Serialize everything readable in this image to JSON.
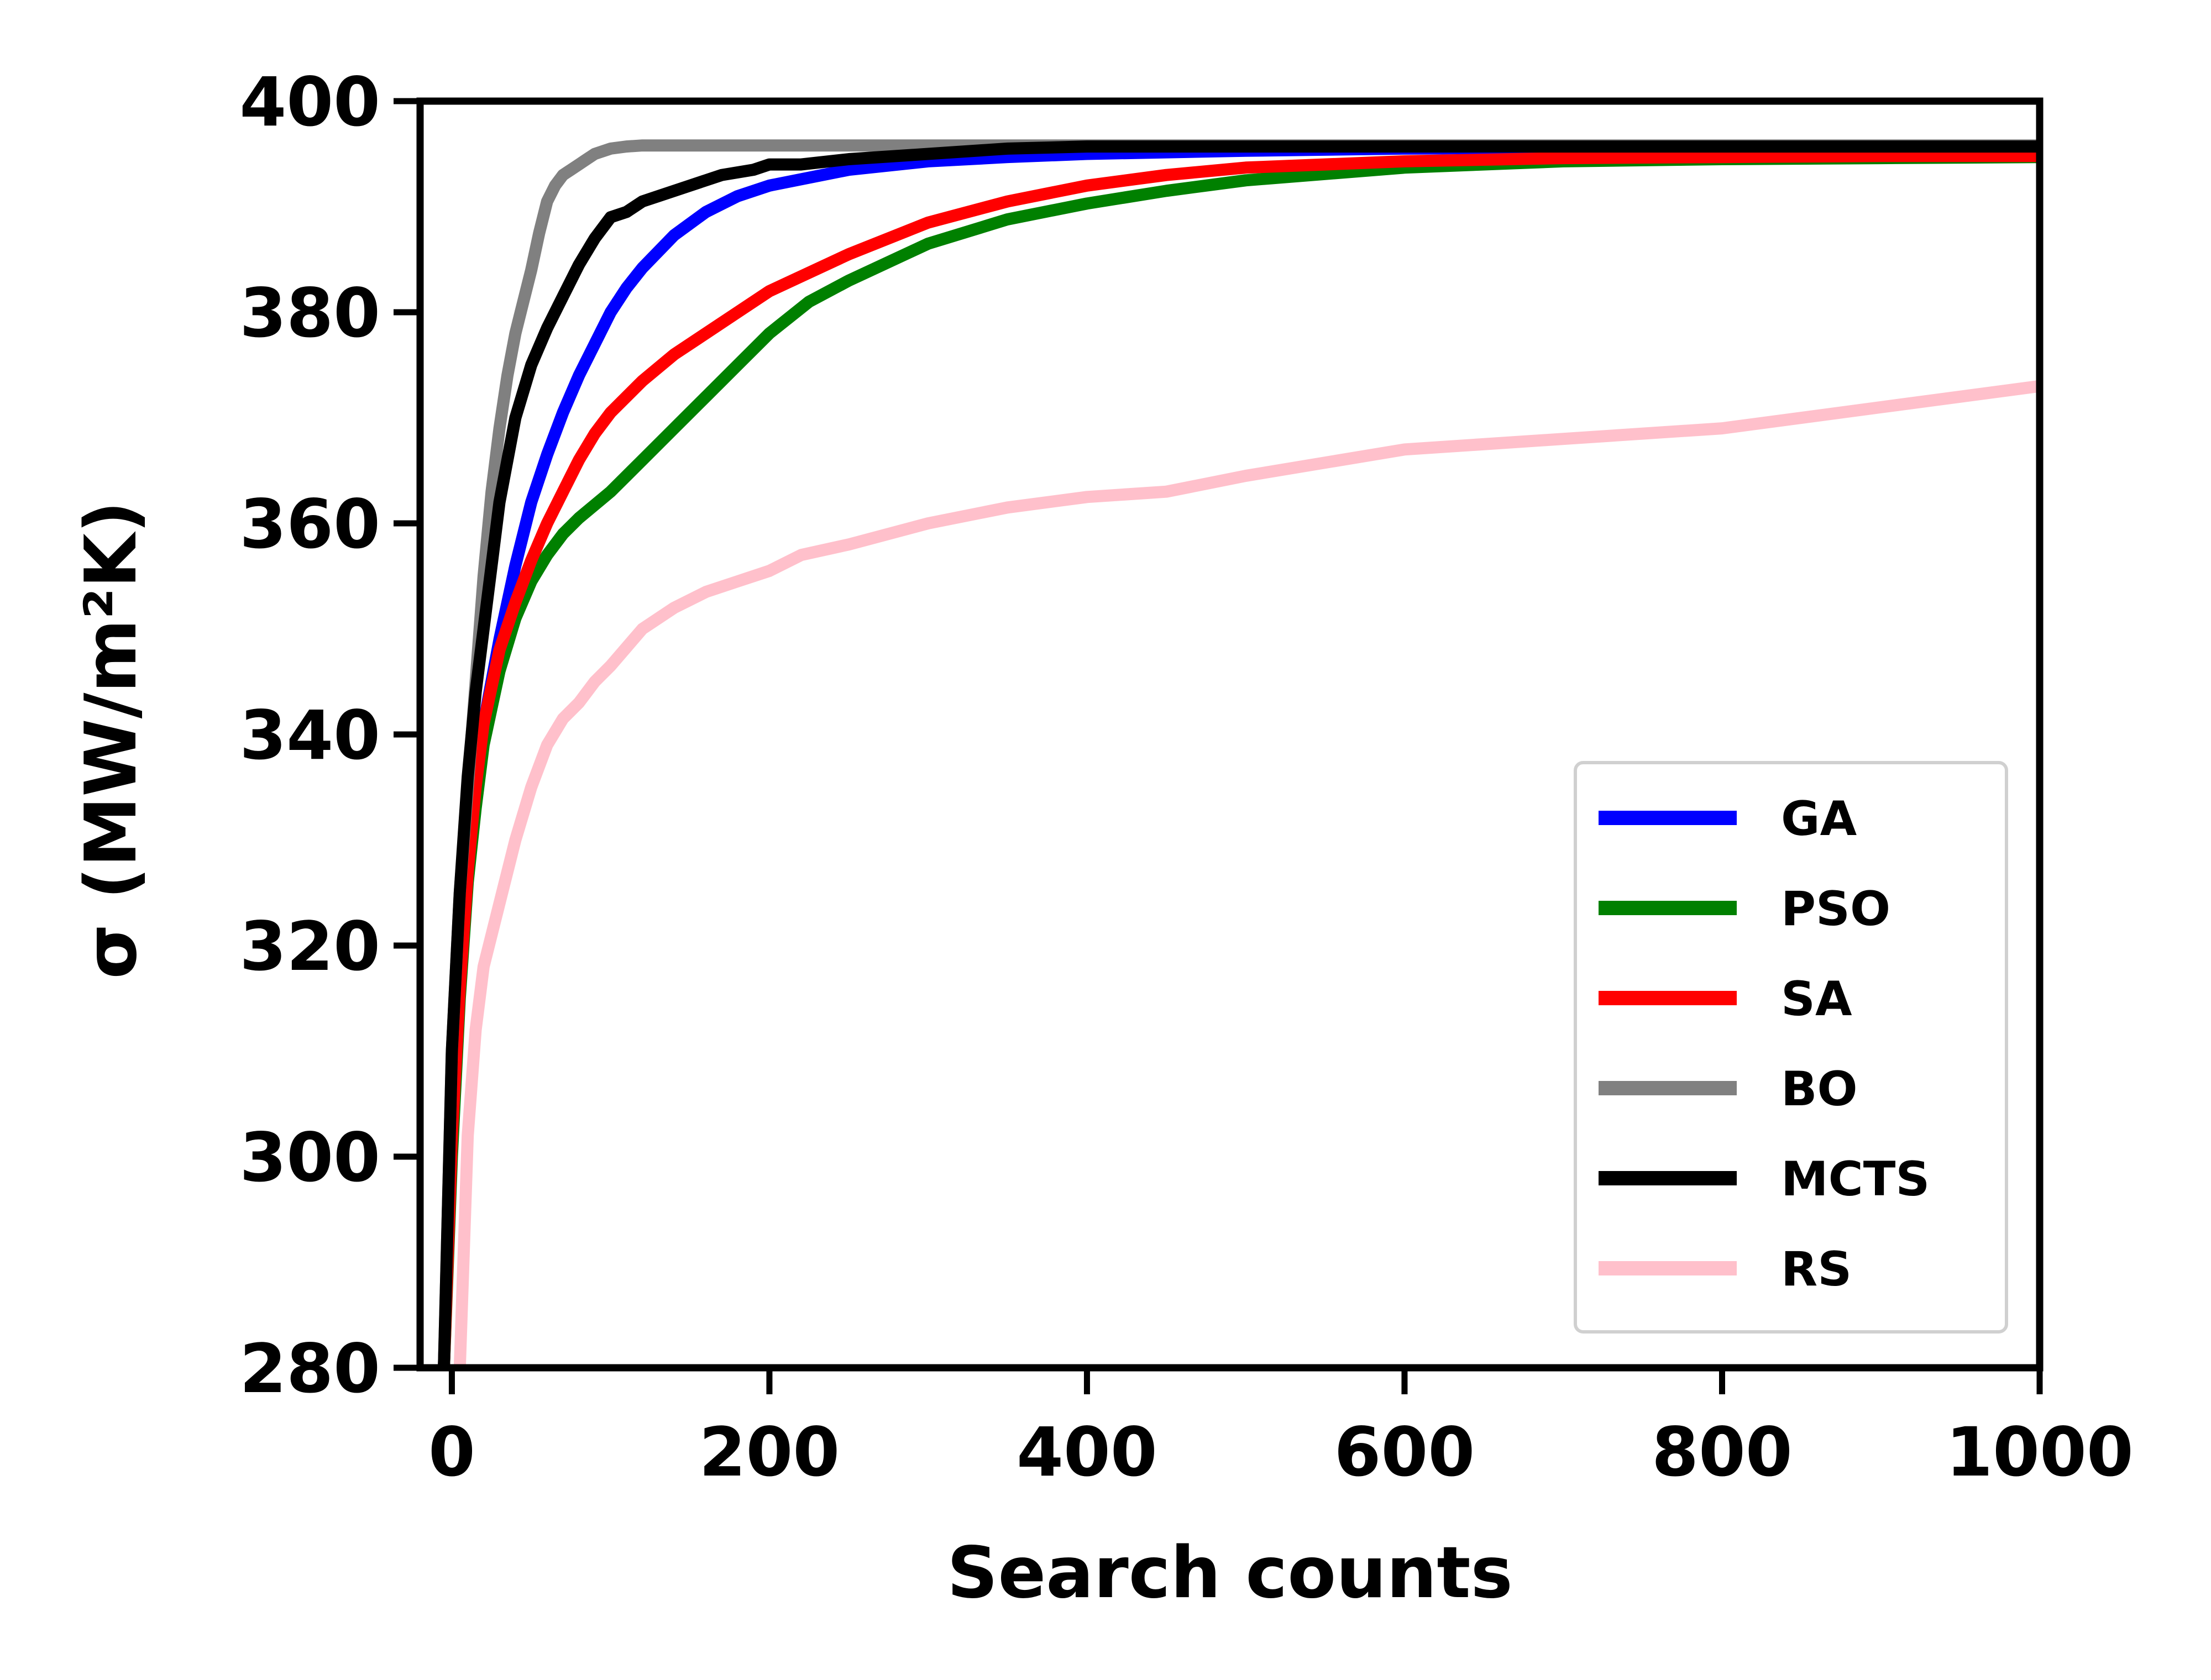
{
  "chart_data": {
    "type": "line",
    "title": "",
    "xlabel": "Search counts",
    "ylabel": "σ (MW/m²K)",
    "xlim": [
      -20,
      1000
    ],
    "ylim": [
      280,
      400
    ],
    "xticks": [
      0,
      200,
      400,
      600,
      800,
      1000
    ],
    "yticks": [
      280,
      300,
      320,
      340,
      360,
      380,
      400
    ],
    "grid": false,
    "legend_position": "lower-right",
    "series": [
      {
        "name": "GA",
        "color": "#0000ff",
        "x": [
          -5,
          0,
          5,
          10,
          15,
          20,
          30,
          40,
          50,
          60,
          70,
          80,
          90,
          100,
          110,
          120,
          140,
          160,
          180,
          200,
          250,
          300,
          350,
          400,
          500,
          600,
          700,
          800,
          900,
          1000
        ],
        "y": [
          280,
          305,
          318,
          328,
          335,
          341,
          349,
          356,
          362,
          366.5,
          370.5,
          374,
          377,
          380,
          382.3,
          384.2,
          387.3,
          389.5,
          391,
          392,
          393.5,
          394.3,
          394.7,
          395,
          395.3,
          395.5,
          395.6,
          395.7,
          395.7,
          395.7
        ]
      },
      {
        "name": "PSO",
        "color": "#008000",
        "x": [
          -5,
          0,
          5,
          10,
          15,
          20,
          30,
          40,
          50,
          60,
          70,
          80,
          100,
          120,
          140,
          160,
          180,
          200,
          225,
          250,
          300,
          350,
          400,
          450,
          500,
          600,
          700,
          800,
          900,
          1000
        ],
        "y": [
          280,
          300,
          315,
          326,
          333,
          339,
          346,
          351,
          354.5,
          357,
          359,
          360.5,
          363,
          366,
          369,
          372,
          375,
          378,
          381,
          383,
          386.5,
          388.8,
          390.3,
          391.5,
          392.5,
          393.7,
          394.3,
          394.5,
          394.6,
          394.7
        ]
      },
      {
        "name": "SA",
        "color": "#ff0000",
        "x": [
          -5,
          0,
          5,
          10,
          15,
          20,
          30,
          40,
          50,
          60,
          70,
          80,
          90,
          100,
          120,
          140,
          160,
          180,
          200,
          250,
          300,
          350,
          400,
          450,
          500,
          600,
          700,
          800,
          900,
          1000
        ],
        "y": [
          280,
          302,
          316,
          327,
          335,
          341,
          348,
          352.5,
          356.5,
          360,
          363,
          366,
          368.5,
          370.5,
          373.5,
          376,
          378,
          380,
          382,
          385.5,
          388.5,
          390.5,
          392,
          393,
          393.7,
          394.3,
          394.6,
          394.7,
          394.8,
          394.8
        ]
      },
      {
        "name": "BO",
        "color": "#808080",
        "x": [
          -5,
          0,
          5,
          10,
          15,
          20,
          25,
          30,
          35,
          40,
          45,
          50,
          55,
          60,
          65,
          70,
          75,
          80,
          85,
          90,
          100,
          110,
          120,
          150,
          200,
          300,
          400,
          600,
          800,
          1000
        ],
        "y": [
          280,
          310,
          325,
          335,
          345,
          355,
          363,
          369,
          374,
          378,
          381,
          384,
          387.5,
          390.5,
          392,
          393,
          393.5,
          394,
          394.5,
          395,
          395.5,
          395.7,
          395.8,
          395.8,
          395.8,
          395.8,
          395.8,
          395.8,
          395.8,
          395.8
        ]
      },
      {
        "name": "MCTS",
        "color": "#000000",
        "x": [
          -5,
          0,
          5,
          10,
          15,
          20,
          25,
          30,
          40,
          50,
          60,
          70,
          80,
          90,
          100,
          110,
          120,
          130,
          150,
          170,
          190,
          200,
          220,
          250,
          300,
          350,
          400,
          600,
          800,
          1000
        ],
        "y": [
          280,
          310,
          325,
          336,
          344,
          350,
          356,
          362,
          370,
          375,
          378.5,
          381.5,
          384.5,
          387,
          389,
          389.5,
          390.5,
          391,
          392,
          393,
          393.5,
          394,
          394,
          394.5,
          395,
          395.5,
          395.7,
          395.7,
          395.7,
          395.7
        ]
      },
      {
        "name": "RS",
        "color": "#ffc0cb",
        "x": [
          5,
          10,
          15,
          20,
          30,
          40,
          50,
          60,
          70,
          80,
          90,
          100,
          120,
          140,
          160,
          180,
          200,
          220,
          250,
          300,
          350,
          400,
          450,
          500,
          600,
          700,
          800,
          900,
          1000
        ],
        "y": [
          280,
          302,
          312,
          318,
          324,
          330,
          335,
          339,
          341.5,
          343,
          345,
          346.5,
          350,
          352,
          353.5,
          354.5,
          355.5,
          357,
          358,
          360,
          361.5,
          362.5,
          363,
          364.5,
          367,
          368,
          369,
          371,
          373
        ]
      }
    ]
  }
}
